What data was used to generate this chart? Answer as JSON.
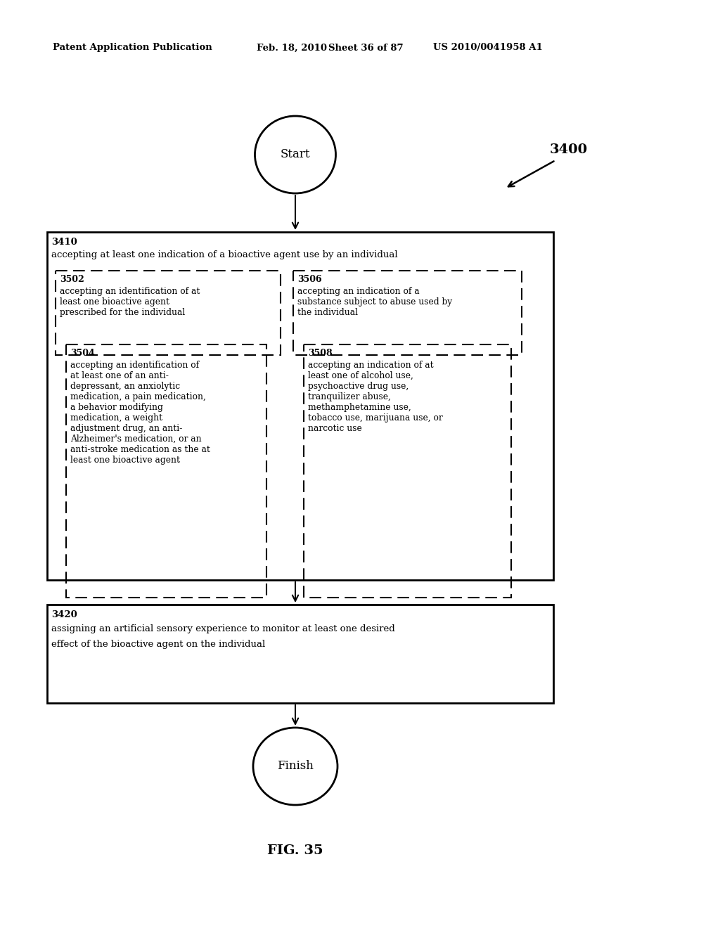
{
  "bg_color": "#ffffff",
  "header_text": "Patent Application Publication",
  "header_date": "Feb. 18, 2010",
  "header_sheet": "Sheet 36 of 87",
  "header_patent": "US 2010/0041958 A1",
  "fig_label": "FIG. 35",
  "diagram_label": "3400",
  "start_label": "Start",
  "finish_label": "Finish",
  "box3410_id": "3410",
  "box3410_text": "accepting at least one indication of a bioactive agent use by an individual",
  "box3502_id": "3502",
  "box3502_text": "accepting an identification of at\nleast one bioactive agent\nprescribed for the individual",
  "box3504_id": "3504",
  "box3504_text": "accepting an identification of\nat least one of an anti-\ndepressant, an anxiolytic\nmedication, a pain medication,\na behavior modifying\nmedication, a weight\nadjustment drug, an anti-\nAlzheimer's medication, or an\nanti-stroke medication as the at\nleast one bioactive agent",
  "box3506_id": "3506",
  "box3506_text": "accepting an indication of a\nsubstance subject to abuse used by\nthe individual",
  "box3508_id": "3508",
  "box3508_text": "accepting an indication of at\nleast one of alcohol use,\npsychoactive drug use,\ntranquilizer abuse,\nmethamphetamine use,\ntobacco use, marijuana use, or\nnarcotic use",
  "box3420_id": "3420",
  "box3420_text_line1": "assigning an artificial sensory experience to monitor at least one desired",
  "box3420_text_line2": "effect of the bioactive agent on the individual"
}
